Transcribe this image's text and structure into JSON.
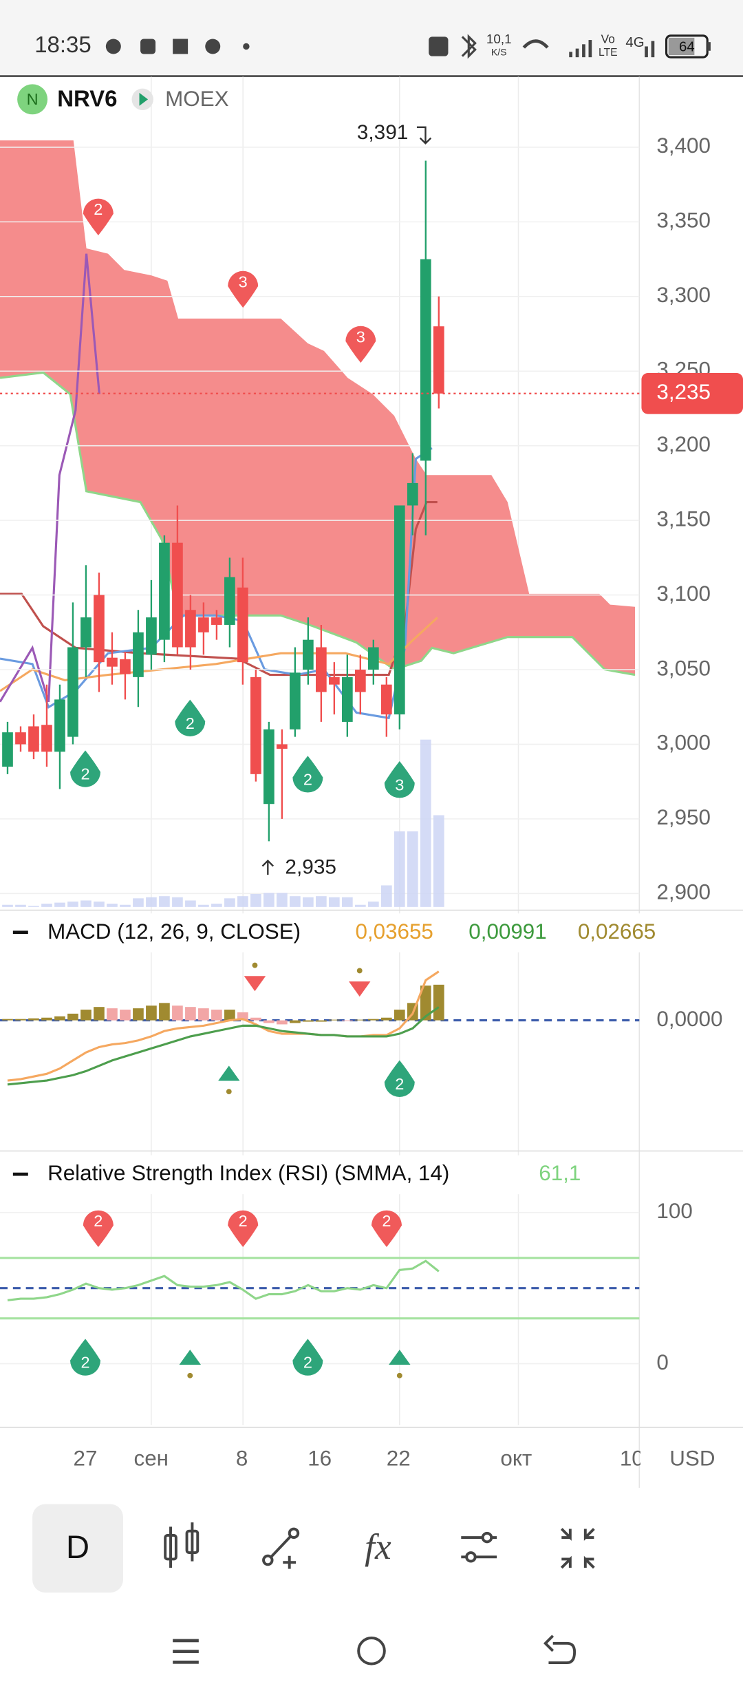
{
  "status_bar": {
    "time": "18:35",
    "net_speed": "10,1",
    "net_unit": "K/S",
    "vo": "Vo",
    "lte": "LTE",
    "network": "4G",
    "battery": "64"
  },
  "header": {
    "badge": "N",
    "ticker": "NRV6",
    "exchange": "MOEX"
  },
  "price_chart": {
    "type": "candlestick",
    "up_color": "#22a06b",
    "down_color": "#f04e4e",
    "open": [
      2985,
      3008,
      3012,
      3013,
      2995,
      3005,
      3065,
      3100,
      3058,
      3057,
      3045,
      3060,
      3070,
      3135,
      3090,
      3085,
      3085,
      3080,
      3105,
      3045,
      2960,
      3000,
      3010,
      3050,
      3065,
      3045,
      3015,
      3050,
      3050,
      3040,
      3020,
      3160,
      3190,
      3280
    ],
    "high": [
      3015,
      3012,
      3020,
      3040,
      3040,
      3095,
      3120,
      3115,
      3075,
      3062,
      3090,
      3110,
      3140,
      3160,
      3100,
      3095,
      3090,
      3125,
      3125,
      3050,
      3015,
      3010,
      3065,
      3085,
      3080,
      3055,
      3060,
      3060,
      3070,
      3045,
      3160,
      3195,
      3391,
      3300
    ],
    "low": [
      2980,
      2995,
      2990,
      2985,
      2970,
      3000,
      3045,
      3035,
      3040,
      3030,
      3025,
      3050,
      3055,
      3060,
      3050,
      3060,
      3070,
      3065,
      3040,
      2975,
      2935,
      2950,
      3005,
      3040,
      3015,
      3020,
      3005,
      3020,
      3040,
      3005,
      3010,
      3140,
      3140,
      3225
    ],
    "close": [
      3008,
      3000,
      2995,
      2995,
      3030,
      3065,
      3085,
      3055,
      3052,
      3047,
      3075,
      3085,
      3135,
      3065,
      3065,
      3075,
      3080,
      3112,
      3055,
      2980,
      3010,
      2997,
      3048,
      3070,
      3035,
      3040,
      3045,
      3035,
      3065,
      3020,
      3160,
      3175,
      3325,
      3235
    ],
    "volume": [
      2,
      2,
      1,
      3,
      4,
      5,
      6,
      5,
      3,
      2,
      8,
      9,
      10,
      9,
      6,
      2,
      3,
      8,
      10,
      12,
      13,
      13,
      10,
      9,
      10,
      9,
      9,
      2,
      5,
      20,
      70,
      70,
      155,
      85
    ],
    "ylim": [
      2891,
      3448
    ],
    "yticks": [
      {
        "value": 2900,
        "label": "2,900"
      },
      {
        "value": 2950,
        "label": "2,950"
      },
      {
        "value": 3000,
        "label": "3,000"
      },
      {
        "value": 3050,
        "label": "3,050"
      },
      {
        "value": 3100,
        "label": "3,100"
      },
      {
        "value": 3150,
        "label": "3,150"
      },
      {
        "value": 3200,
        "label": "3,200"
      },
      {
        "value": 3250,
        "label": "3,250"
      },
      {
        "value": 3300,
        "label": "3,300"
      },
      {
        "value": 3350,
        "label": "3,350"
      },
      {
        "value": 3400,
        "label": "3,400"
      }
    ],
    "last_price": {
      "value": 3235,
      "label": "3,235"
    },
    "max_label": {
      "value": 3391,
      "label": "3,391"
    },
    "min_label": {
      "value": 2935,
      "label": "2,935"
    },
    "signals": [
      "2",
      "3",
      "3",
      "2",
      "2",
      "2",
      "3"
    ]
  },
  "macd": {
    "title": "MACD (12, 26, 9, CLOSE)",
    "macd_value": "0,03655",
    "signal_value": "0,00991",
    "histogram_value": "0,02665",
    "histogram": [
      0.001,
      0.001,
      0.0015,
      0.002,
      0.003,
      0.005,
      0.008,
      0.01,
      0.009,
      0.008,
      0.009,
      0.011,
      0.013,
      0.011,
      0.01,
      0.009,
      0.008,
      0.008,
      0.006,
      0.002,
      -0.002,
      -0.003,
      -0.002,
      -0.001,
      -0.001,
      0.0005,
      -0.0005,
      0.0005,
      0.001,
      0.002,
      0.008,
      0.013,
      0.026,
      0.02665
    ],
    "macd_line": [
      -0.045,
      -0.044,
      -0.042,
      -0.04,
      -0.036,
      -0.03,
      -0.024,
      -0.02,
      -0.018,
      -0.017,
      -0.015,
      -0.012,
      -0.008,
      -0.006,
      -0.005,
      -0.004,
      -0.002,
      0,
      0.001,
      -0.003,
      -0.008,
      -0.01,
      -0.01,
      -0.01,
      -0.011,
      -0.011,
      -0.012,
      -0.012,
      -0.011,
      -0.011,
      -0.006,
      0.005,
      0.03,
      0.03655
    ],
    "signal_line": [
      -0.048,
      -0.047,
      -0.046,
      -0.045,
      -0.043,
      -0.041,
      -0.038,
      -0.034,
      -0.03,
      -0.027,
      -0.024,
      -0.021,
      -0.018,
      -0.015,
      -0.012,
      -0.01,
      -0.008,
      -0.006,
      -0.004,
      -0.004,
      -0.006,
      -0.008,
      -0.009,
      -0.01,
      -0.011,
      -0.011,
      -0.012,
      -0.012,
      -0.012,
      -0.012,
      -0.01,
      -0.006,
      0.003,
      0.00991
    ],
    "ylim": [
      -0.0969,
      0.0525
    ],
    "yticks": [
      {
        "value": 0,
        "label": "0,0000"
      }
    ],
    "signals": [
      "2"
    ]
  },
  "rsi": {
    "title": "Relative Strength Index (RSI) (SMMA, 14)",
    "value_label": "61,1",
    "values": [
      42,
      43,
      43,
      44,
      46,
      49,
      53,
      50,
      49,
      50,
      52,
      55,
      58,
      52,
      51,
      51,
      52,
      54,
      49,
      43,
      46,
      46,
      48,
      52,
      48,
      48,
      50,
      49,
      52,
      50,
      62,
      63,
      68,
      61.1
    ],
    "ylim": [
      -40.7,
      112.9
    ],
    "yticks": [
      0,
      100
    ],
    "levels": [
      30,
      50,
      70
    ],
    "signals": [
      "2",
      "2",
      "2",
      "2",
      "2"
    ]
  },
  "x_labels": [
    "27",
    "сен",
    "8",
    "16",
    "22",
    "окт",
    "10"
  ],
  "currency": "USD",
  "toolbar": {
    "interval": "D"
  }
}
